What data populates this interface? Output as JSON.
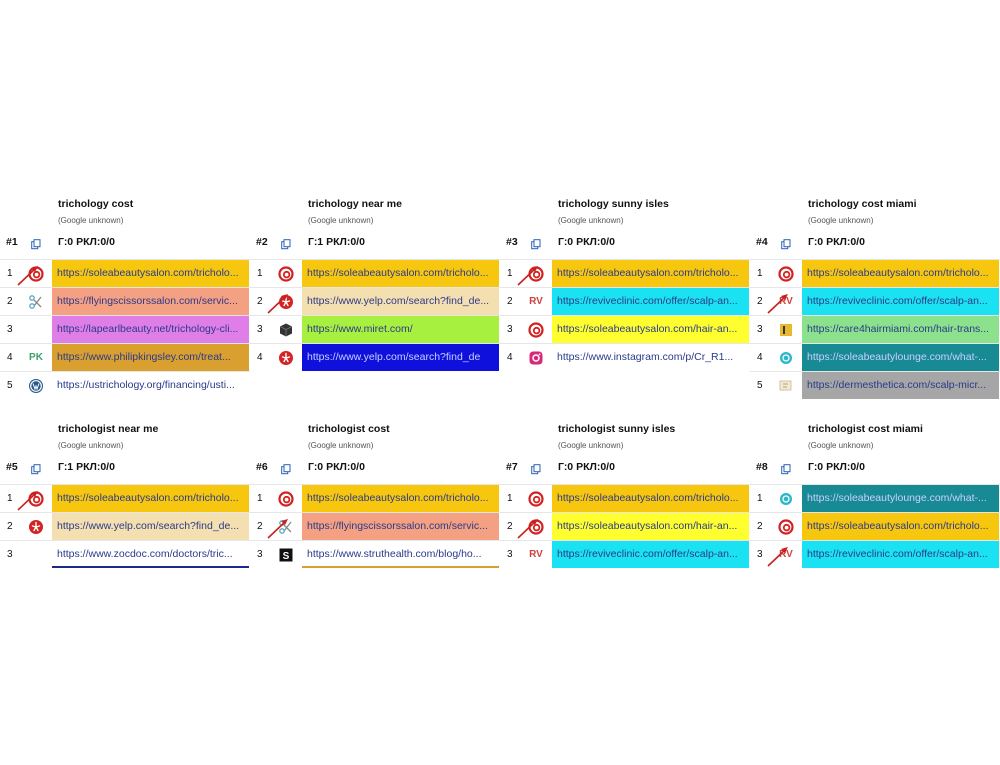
{
  "colors": {
    "accent_red": "#d42020",
    "link": "#2a3a8a"
  },
  "blocks": [
    {
      "num": "#1",
      "keyword": "trichology cost",
      "engine": "(Google unknown)",
      "stats": "Г:0 РКЛ:0/0",
      "rows": [
        {
          "pos": "1",
          "icon": "red-swirl-icon",
          "url": "https://soleabeautysalon.com/tricholo...",
          "bg": "#f7c710",
          "arrow": true
        },
        {
          "pos": "2",
          "icon": "scissors-icon",
          "url": "https://flyingscissorssalon.com/servic...",
          "bg": "#f4a083",
          "arrow": false
        },
        {
          "pos": "3",
          "icon": "",
          "url": "https://lapearlbeauty.net/trichology-cli...",
          "bg": "#e07ee8",
          "arrow": false
        },
        {
          "pos": "4",
          "icon": "pk-icon",
          "url": "https://www.philipkingsley.com/treat...",
          "bg": "#d9a030",
          "arrow": false
        },
        {
          "pos": "5",
          "icon": "wordpress-icon",
          "url": "https://ustrichology.org/financing/usti...",
          "bg": "#ffffff",
          "arrow": false
        }
      ]
    },
    {
      "num": "#2",
      "keyword": "trichology near me",
      "engine": "(Google unknown)",
      "stats": "Г:1 РКЛ:0/0",
      "rows": [
        {
          "pos": "1",
          "icon": "red-swirl-icon",
          "url": "https://soleabeautysalon.com/tricholo...",
          "bg": "#f7c710",
          "arrow": false
        },
        {
          "pos": "2",
          "icon": "yelp-icon",
          "url": "https://www.yelp.com/search?find_de...",
          "bg": "#f4dfb0",
          "arrow": true
        },
        {
          "pos": "3",
          "icon": "cube-icon",
          "url": "https://www.miret.com/",
          "bg": "#a8f040",
          "arrow": false
        },
        {
          "pos": "4",
          "icon": "yelp-icon",
          "url": "https://www.yelp.com/search?find_de",
          "bg": "#1010dd",
          "arrow": false
        }
      ]
    },
    {
      "num": "#3",
      "keyword": "trichology sunny isles",
      "engine": "(Google unknown)",
      "stats": "Г:0 РКЛ:0/0",
      "rows": [
        {
          "pos": "1",
          "icon": "red-swirl-icon",
          "url": "https://soleabeautysalon.com/tricholo...",
          "bg": "#f7c710",
          "arrow": true
        },
        {
          "pos": "2",
          "icon": "rv-icon",
          "url": "https://reviveclinic.com/offer/scalp-an...",
          "bg": "#1ae2f2",
          "arrow": false
        },
        {
          "pos": "3",
          "icon": "red-swirl-icon",
          "url": "https://soleabeautysalon.com/hair-an...",
          "bg": "#ffff30",
          "arrow": false
        },
        {
          "pos": "4",
          "icon": "instagram-icon",
          "url": "https://www.instagram.com/p/Cr_R1...",
          "bg": "#ffffff",
          "arrow": false
        }
      ]
    },
    {
      "num": "#4",
      "keyword": "trichology cost miami",
      "engine": "(Google unknown)",
      "stats": "Г:0 РКЛ:0/0",
      "rows": [
        {
          "pos": "1",
          "icon": "red-swirl-icon",
          "url": "https://soleabeautysalon.com/tricholo...",
          "bg": "#f7c710",
          "arrow": false
        },
        {
          "pos": "2",
          "icon": "rv-icon",
          "url": "https://reviveclinic.com/offer/scalp-an...",
          "bg": "#1ae2f2",
          "arrow": true
        },
        {
          "pos": "3",
          "icon": "gold-square-icon",
          "url": "https://care4hairmiami.com/hair-trans...",
          "bg": "#8ce28c",
          "arrow": false
        },
        {
          "pos": "4",
          "icon": "teal-circle-icon",
          "url": "https://soleabeautylounge.com/what-...",
          "bg": "#188a94",
          "arrow": false
        },
        {
          "pos": "5",
          "icon": "flag-icon",
          "url": "https://dermesthetica.com/scalp-micr...",
          "bg": "#a6a6a6",
          "arrow": false
        }
      ]
    },
    {
      "num": "#5",
      "keyword": "trichologist near me",
      "engine": "(Google unknown)",
      "stats": "Г:1 РКЛ:0/0",
      "rows": [
        {
          "pos": "1",
          "icon": "red-swirl-icon",
          "url": "https://soleabeautysalon.com/tricholo...",
          "bg": "#f7c710",
          "arrow": true
        },
        {
          "pos": "2",
          "icon": "yelp-icon",
          "url": "https://www.yelp.com/search?find_de...",
          "bg": "#f4dfb0",
          "arrow": false
        },
        {
          "pos": "3",
          "icon": "",
          "url": "https://www.zocdoc.com/doctors/tric...",
          "bg": "#ffffff",
          "arrow": false,
          "underline": "#1a2a8a"
        }
      ]
    },
    {
      "num": "#6",
      "keyword": "trichologist cost",
      "engine": "(Google unknown)",
      "stats": "Г:0 РКЛ:0/0",
      "rows": [
        {
          "pos": "1",
          "icon": "red-swirl-icon",
          "url": "https://soleabeautysalon.com/tricholo...",
          "bg": "#f7c710",
          "arrow": false
        },
        {
          "pos": "2",
          "icon": "scissors-icon",
          "url": "https://flyingscissorssalon.com/servic...",
          "bg": "#f4a083",
          "arrow": true
        },
        {
          "pos": "3",
          "icon": "s-square-icon",
          "url": "https://www.struthealth.com/blog/ho...",
          "bg": "#ffffff",
          "arrow": false,
          "underline": "#d9a030"
        }
      ]
    },
    {
      "num": "#7",
      "keyword": "trichologist sunny isles",
      "engine": "(Google unknown)",
      "stats": "Г:0 РКЛ:0/0",
      "rows": [
        {
          "pos": "1",
          "icon": "red-swirl-icon",
          "url": "https://soleabeautysalon.com/tricholo...",
          "bg": "#f7c710",
          "arrow": false
        },
        {
          "pos": "2",
          "icon": "red-swirl-icon",
          "url": "https://soleabeautysalon.com/hair-an...",
          "bg": "#ffff30",
          "arrow": true
        },
        {
          "pos": "3",
          "icon": "rv-icon",
          "url": "https://reviveclinic.com/offer/scalp-an...",
          "bg": "#1ae2f2",
          "arrow": false
        }
      ]
    },
    {
      "num": "#8",
      "keyword": "trichologist cost miami",
      "engine": "(Google unknown)",
      "stats": "Г:0 РКЛ:0/0",
      "rows": [
        {
          "pos": "1",
          "icon": "teal-circle-icon",
          "url": "https://soleabeautylounge.com/what-...",
          "bg": "#188a94",
          "arrow": false
        },
        {
          "pos": "2",
          "icon": "red-swirl-icon",
          "url": "https://soleabeautysalon.com/tricholo...",
          "bg": "#f7c710",
          "arrow": false
        },
        {
          "pos": "3",
          "icon": "rv-icon",
          "url": "https://reviveclinic.com/offer/scalp-an...",
          "bg": "#1ae2f2",
          "arrow": true
        }
      ]
    }
  ]
}
